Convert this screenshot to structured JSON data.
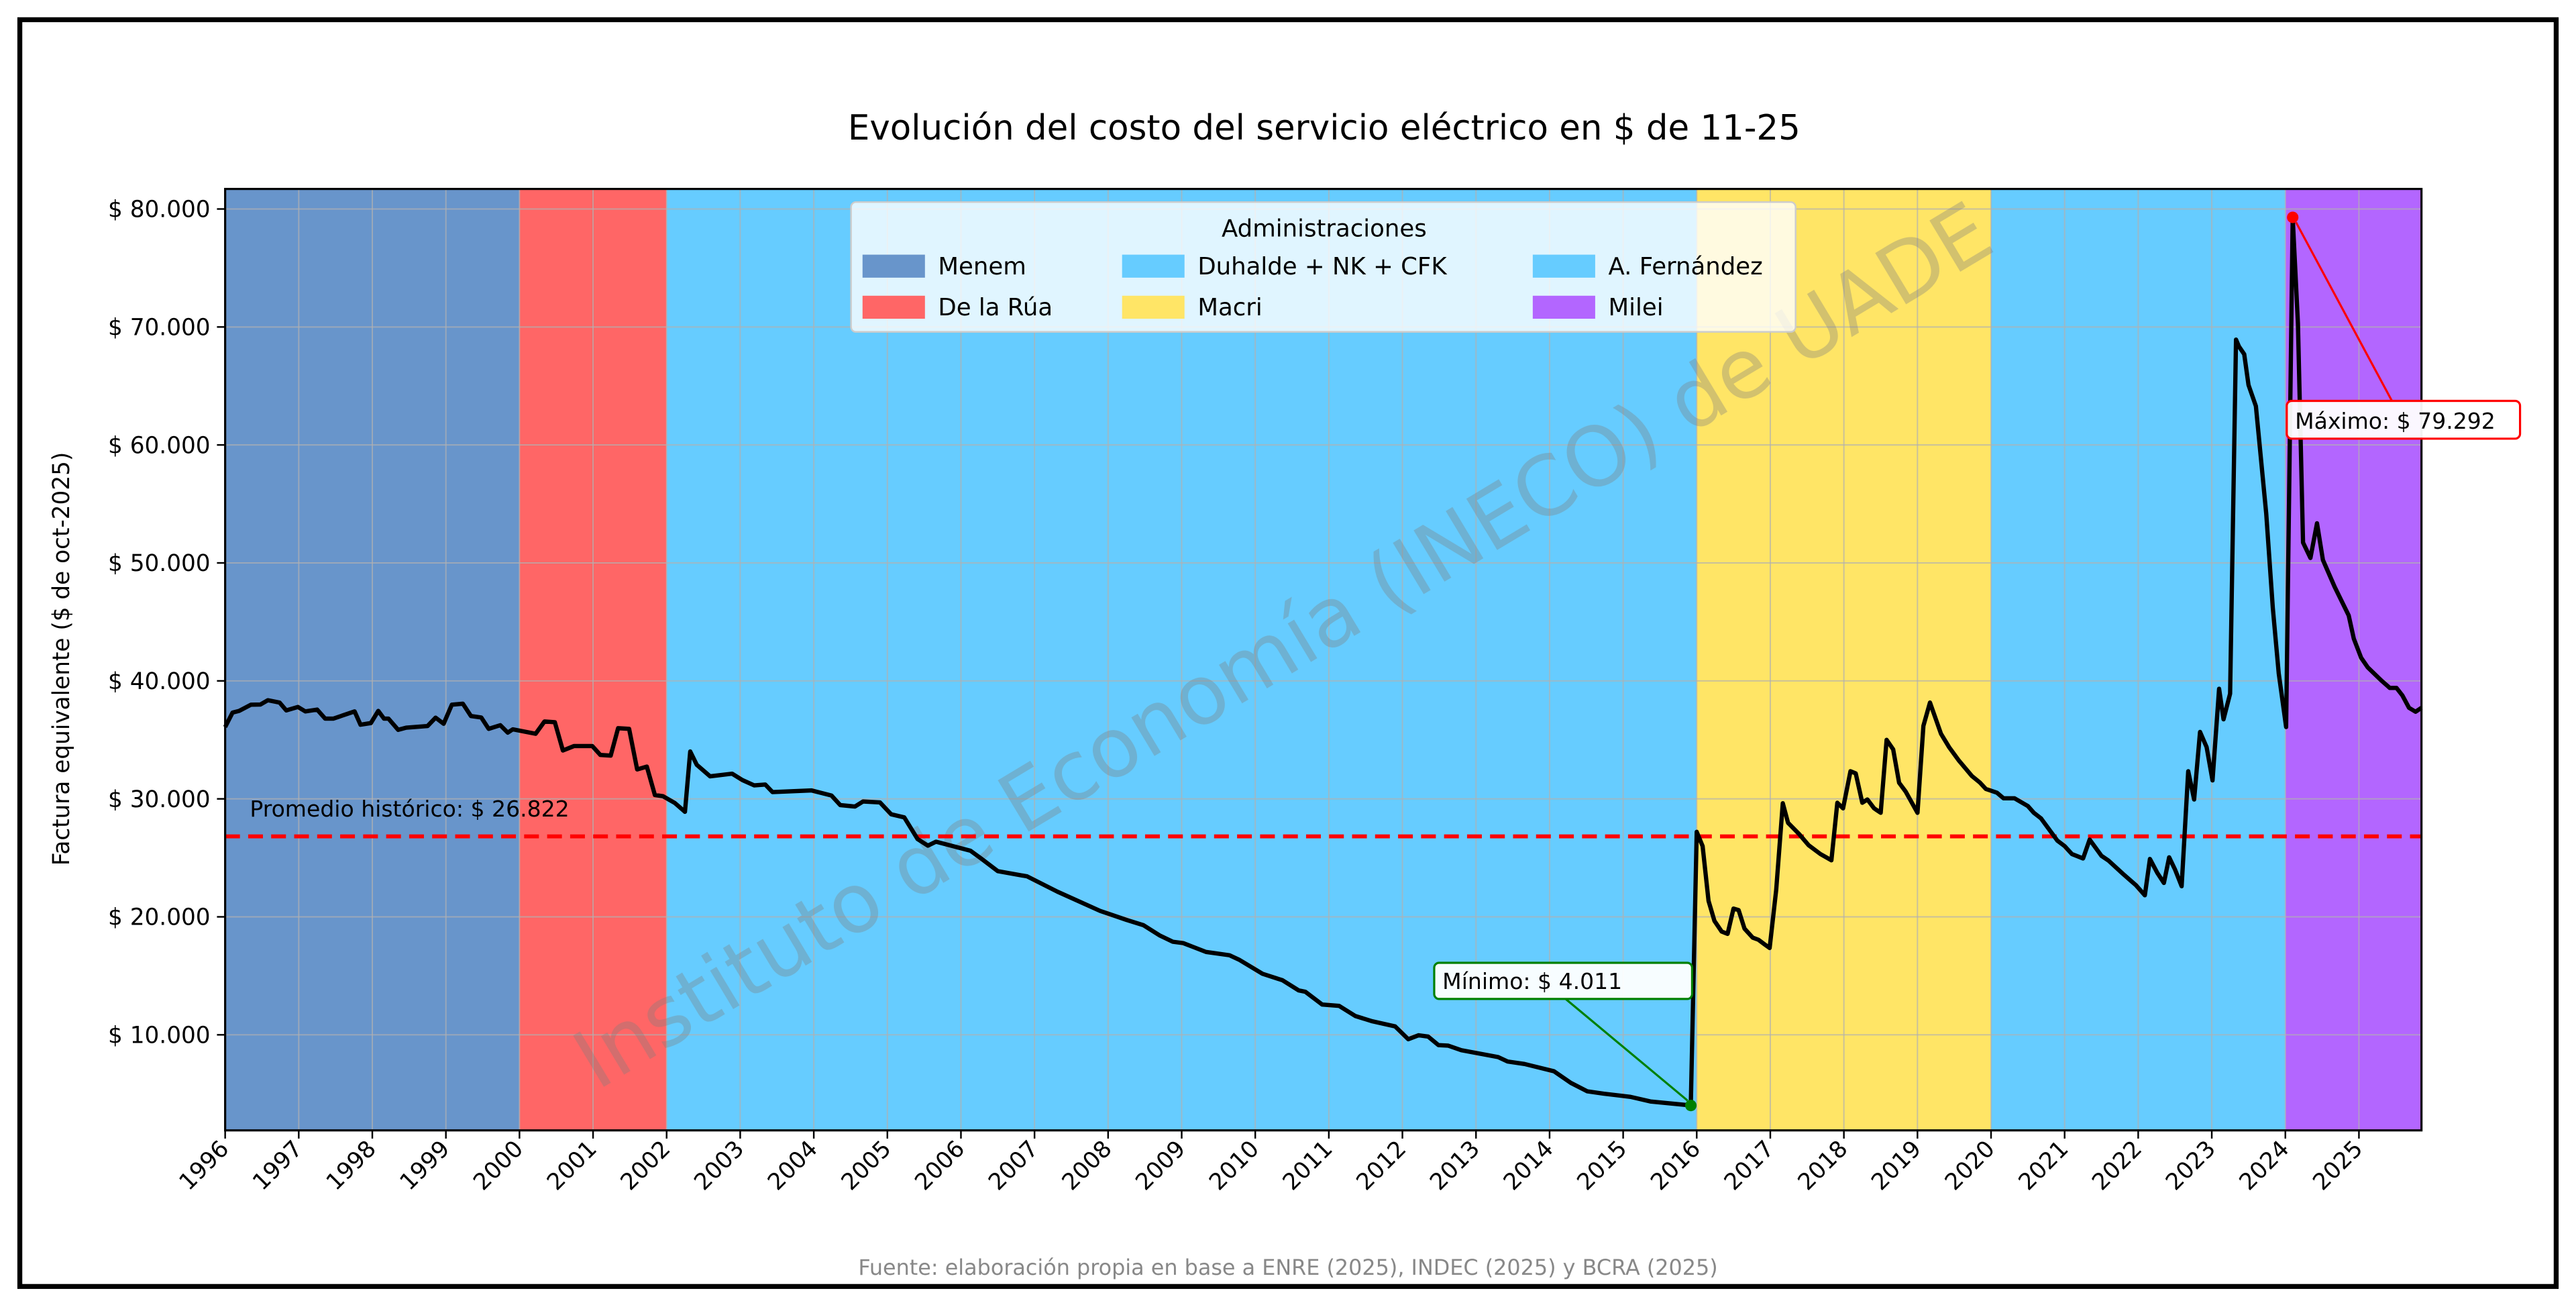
{
  "chart_data": {
    "type": "line",
    "title": "Evolución del costo del servicio eléctrico en $ de 11-25",
    "xlabel": "",
    "ylabel": "Factura equivalente ($ de oct-2025)",
    "xlim": [
      1996,
      2025.85
    ],
    "ylim": [
      1900,
      81700
    ],
    "grid": true,
    "x_ticks": [
      1996,
      1997,
      1998,
      1999,
      2000,
      2001,
      2002,
      2003,
      2004,
      2005,
      2006,
      2007,
      2008,
      2009,
      2010,
      2011,
      2012,
      2013,
      2014,
      2015,
      2016,
      2017,
      2018,
      2019,
      2020,
      2021,
      2022,
      2023,
      2024,
      2025
    ],
    "x_tick_labels": [
      "1996",
      "1997",
      "1998",
      "1999",
      "2000",
      "2001",
      "2002",
      "2003",
      "2004",
      "2005",
      "2006",
      "2007",
      "2008",
      "2009",
      "2010",
      "2011",
      "2012",
      "2013",
      "2014",
      "2015",
      "2016",
      "2017",
      "2018",
      "2019",
      "2020",
      "2021",
      "2022",
      "2023",
      "2024",
      "2025"
    ],
    "y_ticks": [
      10000,
      20000,
      30000,
      40000,
      50000,
      60000,
      70000,
      80000
    ],
    "y_tick_labels": [
      "$ 10.000",
      "$ 20.000",
      "$ 30.000",
      "$ 40.000",
      "$ 50.000",
      "$ 60.000",
      "$ 70.000",
      "$ 80.000"
    ],
    "series": [
      {
        "color": "#000000",
        "points": [
          [
            1996.0,
            36090
          ],
          [
            1996.1,
            37320
          ],
          [
            1996.19,
            37450
          ],
          [
            1996.35,
            37980
          ],
          [
            1996.48,
            38000
          ],
          [
            1996.58,
            38360
          ],
          [
            1996.74,
            38170
          ],
          [
            1996.83,
            37500
          ],
          [
            1996.99,
            37790
          ],
          [
            1997.09,
            37410
          ],
          [
            1997.25,
            37560
          ],
          [
            1997.36,
            36800
          ],
          [
            1997.47,
            36800
          ],
          [
            1997.76,
            37410
          ],
          [
            1997.84,
            36280
          ],
          [
            1997.98,
            36430
          ],
          [
            1998.08,
            37450
          ],
          [
            1998.16,
            36800
          ],
          [
            1998.22,
            36800
          ],
          [
            1998.35,
            35860
          ],
          [
            1998.46,
            36030
          ],
          [
            1998.75,
            36180
          ],
          [
            1998.86,
            36880
          ],
          [
            1998.97,
            36370
          ],
          [
            1999.08,
            37980
          ],
          [
            1999.23,
            38070
          ],
          [
            1999.34,
            37030
          ],
          [
            1999.48,
            36900
          ],
          [
            1999.58,
            35940
          ],
          [
            1999.74,
            36240
          ],
          [
            1999.84,
            35610
          ],
          [
            1999.91,
            35900
          ],
          [
            2000.22,
            35520
          ],
          [
            2000.34,
            36560
          ],
          [
            2000.48,
            36500
          ],
          [
            2000.59,
            34100
          ],
          [
            2000.74,
            34480
          ],
          [
            2000.99,
            34480
          ],
          [
            2001.1,
            33720
          ],
          [
            2001.24,
            33670
          ],
          [
            2001.34,
            35990
          ],
          [
            2001.49,
            35940
          ],
          [
            2001.6,
            32500
          ],
          [
            2001.73,
            32740
          ],
          [
            2001.84,
            30320
          ],
          [
            2001.95,
            30230
          ],
          [
            2002.11,
            29660
          ],
          [
            2002.25,
            28900
          ],
          [
            2002.32,
            34010
          ],
          [
            2002.41,
            32890
          ],
          [
            2002.59,
            31910
          ],
          [
            2002.89,
            32130
          ],
          [
            2003.03,
            31590
          ],
          [
            2003.19,
            31150
          ],
          [
            2003.34,
            31220
          ],
          [
            2003.44,
            30570
          ],
          [
            2003.97,
            30720
          ],
          [
            2004.24,
            30280
          ],
          [
            2004.36,
            29480
          ],
          [
            2004.56,
            29350
          ],
          [
            2004.67,
            29780
          ],
          [
            2004.9,
            29700
          ],
          [
            2005.05,
            28700
          ],
          [
            2005.23,
            28430
          ],
          [
            2005.41,
            26590
          ],
          [
            2005.55,
            26040
          ],
          [
            2005.66,
            26370
          ],
          [
            2006.13,
            25610
          ],
          [
            2006.27,
            24960
          ],
          [
            2006.5,
            23870
          ],
          [
            2006.9,
            23430
          ],
          [
            2007.31,
            22130
          ],
          [
            2007.89,
            20500
          ],
          [
            2008.25,
            19740
          ],
          [
            2008.48,
            19300
          ],
          [
            2008.7,
            18430
          ],
          [
            2008.88,
            17890
          ],
          [
            2009.02,
            17780
          ],
          [
            2009.33,
            17020
          ],
          [
            2009.65,
            16740
          ],
          [
            2009.78,
            16370
          ],
          [
            2010.1,
            15170
          ],
          [
            2010.37,
            14630
          ],
          [
            2010.59,
            13760
          ],
          [
            2010.68,
            13650
          ],
          [
            2010.91,
            12570
          ],
          [
            2011.14,
            12460
          ],
          [
            2011.36,
            11590
          ],
          [
            2011.59,
            11150
          ],
          [
            2011.9,
            10720
          ],
          [
            2012.08,
            9630
          ],
          [
            2012.22,
            9960
          ],
          [
            2012.35,
            9850
          ],
          [
            2012.49,
            9130
          ],
          [
            2012.62,
            9090
          ],
          [
            2012.8,
            8700
          ],
          [
            2013.3,
            8110
          ],
          [
            2013.43,
            7740
          ],
          [
            2013.66,
            7520
          ],
          [
            2014.06,
            6910
          ],
          [
            2014.29,
            5930
          ],
          [
            2014.51,
            5220
          ],
          [
            2014.74,
            5000
          ],
          [
            2015.1,
            4740
          ],
          [
            2015.37,
            4350
          ],
          [
            2015.92,
            4011
          ],
          [
            2016.0,
            27210
          ],
          [
            2016.08,
            25990
          ],
          [
            2016.16,
            21360
          ],
          [
            2016.24,
            19660
          ],
          [
            2016.34,
            18750
          ],
          [
            2016.42,
            18560
          ],
          [
            2016.5,
            20700
          ],
          [
            2016.57,
            20570
          ],
          [
            2016.65,
            19000
          ],
          [
            2016.76,
            18240
          ],
          [
            2016.84,
            18050
          ],
          [
            2016.92,
            17680
          ],
          [
            2016.99,
            17360
          ],
          [
            2017.08,
            22300
          ],
          [
            2017.17,
            29630
          ],
          [
            2017.24,
            27970
          ],
          [
            2017.39,
            27020
          ],
          [
            2017.52,
            26080
          ],
          [
            2017.68,
            25330
          ],
          [
            2017.83,
            24800
          ],
          [
            2017.91,
            29670
          ],
          [
            2017.99,
            29200
          ],
          [
            2018.09,
            32350
          ],
          [
            2018.16,
            32160
          ],
          [
            2018.25,
            29670
          ],
          [
            2018.32,
            29950
          ],
          [
            2018.41,
            29200
          ],
          [
            2018.5,
            28820
          ],
          [
            2018.58,
            35000
          ],
          [
            2018.67,
            34200
          ],
          [
            2018.75,
            31370
          ],
          [
            2018.84,
            30610
          ],
          [
            2019.0,
            28820
          ],
          [
            2019.08,
            36190
          ],
          [
            2019.17,
            38170
          ],
          [
            2019.32,
            35520
          ],
          [
            2019.43,
            34390
          ],
          [
            2019.56,
            33260
          ],
          [
            2019.74,
            31940
          ],
          [
            2019.85,
            31370
          ],
          [
            2019.93,
            30840
          ],
          [
            2020.08,
            30520
          ],
          [
            2020.17,
            30050
          ],
          [
            2020.32,
            30050
          ],
          [
            2020.5,
            29390
          ],
          [
            2020.58,
            28820
          ],
          [
            2020.68,
            28350
          ],
          [
            2020.9,
            26460
          ],
          [
            2021.0,
            25990
          ],
          [
            2021.1,
            25330
          ],
          [
            2021.25,
            24950
          ],
          [
            2021.34,
            26550
          ],
          [
            2021.5,
            25170
          ],
          [
            2021.6,
            24760
          ],
          [
            2021.79,
            23660
          ],
          [
            2021.97,
            22680
          ],
          [
            2022.09,
            21830
          ],
          [
            2022.16,
            24910
          ],
          [
            2022.26,
            23720
          ],
          [
            2022.35,
            22870
          ],
          [
            2022.42,
            25040
          ],
          [
            2022.5,
            24000
          ],
          [
            2022.59,
            22590
          ],
          [
            2022.68,
            32350
          ],
          [
            2022.76,
            29950
          ],
          [
            2022.84,
            35670
          ],
          [
            2022.93,
            34390
          ],
          [
            2023.01,
            31560
          ],
          [
            2023.1,
            39340
          ],
          [
            2023.16,
            36750
          ],
          [
            2023.25,
            38920
          ],
          [
            2023.33,
            68930
          ],
          [
            2023.37,
            68340
          ],
          [
            2023.44,
            67690
          ],
          [
            2023.5,
            65080
          ],
          [
            2023.6,
            63290
          ],
          [
            2023.74,
            54170
          ],
          [
            2023.83,
            46190
          ],
          [
            2023.91,
            40650
          ],
          [
            2024.01,
            36090
          ],
          [
            2024.1,
            79292
          ],
          [
            2024.17,
            70290
          ],
          [
            2024.24,
            51730
          ],
          [
            2024.34,
            50420
          ],
          [
            2024.43,
            53360
          ],
          [
            2024.51,
            50260
          ],
          [
            2024.67,
            47980
          ],
          [
            2024.86,
            45540
          ],
          [
            2024.93,
            43580
          ],
          [
            2025.03,
            41950
          ],
          [
            2025.12,
            41140
          ],
          [
            2025.31,
            40000
          ],
          [
            2025.42,
            39410
          ],
          [
            2025.51,
            39410
          ],
          [
            2025.59,
            38760
          ],
          [
            2025.68,
            37720
          ],
          [
            2025.77,
            37390
          ],
          [
            2025.85,
            37720
          ]
        ]
      }
    ],
    "periods": [
      {
        "name": "Menem",
        "start": 1996,
        "end": 2000,
        "color": "#6895cb"
      },
      {
        "name": "De la Rúa",
        "start": 2000,
        "end": 2002,
        "color": "#ff6666"
      },
      {
        "name": "Duhalde + NK + CFK",
        "start": 2002,
        "end": 2016,
        "color": "#66ccff"
      },
      {
        "name": "Macri",
        "start": 2016,
        "end": 2020,
        "color": "#ffe566"
      },
      {
        "name": "A. Fernández",
        "start": 2020,
        "end": 2024,
        "color": "#66ccff"
      },
      {
        "name": "Milei",
        "start": 2024,
        "end": 2025.85,
        "color": "#b366ff"
      }
    ],
    "legend": {
      "title": "Administraciones",
      "placement": "top-center",
      "entries": [
        "Menem",
        "De la Rúa",
        "Duhalde + NK + CFK",
        "Macri",
        "A. Fernández",
        "Milei"
      ]
    },
    "average": {
      "value": 26822,
      "label": "Promedio histórico: $ 26.822",
      "color": "#ff0000"
    },
    "minimum": {
      "x": 2015.92,
      "value": 4011,
      "label": "Mínimo: $ 4.011",
      "color": "#008000"
    },
    "maximum": {
      "x": 2024.1,
      "value": 79292,
      "label": "Máximo: $ 79.292",
      "color": "#ff0000"
    }
  },
  "watermark": "Instituto de Economía (INECO) de UADE",
  "source": "Fuente: elaboración propia en base a ENRE (2025), INDEC (2025) y BCRA (2025)"
}
